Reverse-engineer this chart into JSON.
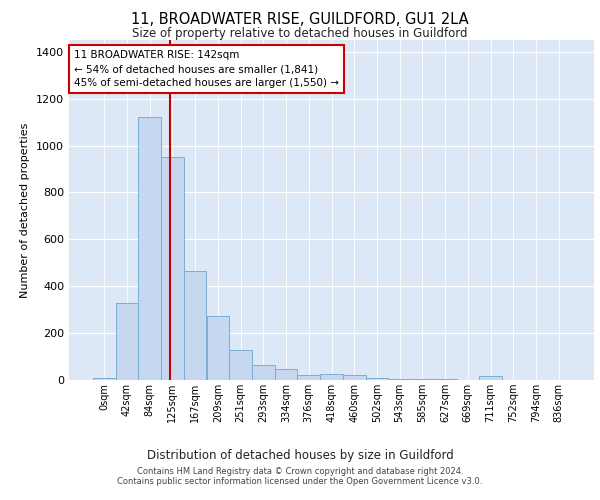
{
  "title1": "11, BROADWATER RISE, GUILDFORD, GU1 2LA",
  "title2": "Size of property relative to detached houses in Guildford",
  "xlabel": "Distribution of detached houses by size in Guildford",
  "ylabel": "Number of detached properties",
  "bar_labels": [
    "0sqm",
    "42sqm",
    "84sqm",
    "125sqm",
    "167sqm",
    "209sqm",
    "251sqm",
    "293sqm",
    "334sqm",
    "376sqm",
    "418sqm",
    "460sqm",
    "502sqm",
    "543sqm",
    "585sqm",
    "627sqm",
    "669sqm",
    "711sqm",
    "752sqm",
    "794sqm",
    "836sqm"
  ],
  "bar_values": [
    10,
    330,
    1120,
    950,
    465,
    275,
    130,
    65,
    45,
    20,
    25,
    20,
    10,
    5,
    5,
    5,
    0,
    15,
    0,
    0,
    0
  ],
  "bar_color": "#c5d8f0",
  "bar_edge_color": "#7aaed4",
  "vline_color": "#cc0000",
  "annotation_text": "11 BROADWATER RISE: 142sqm\n← 54% of detached houses are smaller (1,841)\n45% of semi-detached houses are larger (1,550) →",
  "annotation_box_color": "#ffffff",
  "annotation_box_edge_color": "#cc0000",
  "ylim": [
    0,
    1450
  ],
  "yticks": [
    0,
    200,
    400,
    600,
    800,
    1000,
    1200,
    1400
  ],
  "plot_background_color": "#dce8f5",
  "footer1": "Contains HM Land Registry data © Crown copyright and database right 2024.",
  "footer2": "Contains public sector information licensed under the Open Government Licence v3.0."
}
